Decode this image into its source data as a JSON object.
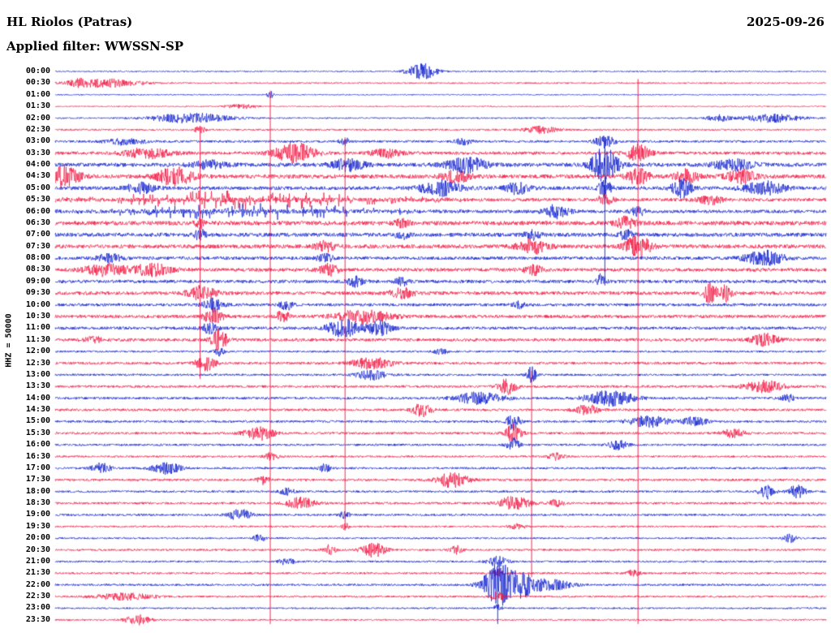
{
  "header": {
    "station": "HL Riolos (Patras)",
    "date": "2025-09-26",
    "filter": "Applied filter: WWSSN-SP"
  },
  "axis": {
    "left_label": "HHZ = 50000"
  },
  "chart_data": {
    "type": "line",
    "subtype": "helicorder-seismogram",
    "title": "HL Riolos (Patras)",
    "date": "2025-09-26",
    "filter": "WWSSN-SP",
    "xlabel": "",
    "ylabel": "HHZ = 50000",
    "grid": false,
    "legend": "none",
    "x_range_minutes_per_row": 30,
    "colors": {
      "blue": "#0d1ccd",
      "red": "#f2113e"
    },
    "rows": [
      {
        "time": "00:00",
        "color": "blue",
        "noise": 0.8,
        "events": [
          {
            "t": 0.476,
            "w": 0.018,
            "a": 10
          }
        ]
      },
      {
        "time": "00:30",
        "color": "red",
        "noise": 0.9,
        "events": [
          {
            "t": 0.065,
            "w": 0.045,
            "a": 5
          },
          {
            "t": 0.03,
            "w": 0.01,
            "a": 3
          }
        ]
      },
      {
        "time": "01:00",
        "color": "blue",
        "noise": 0.7,
        "events": [
          {
            "t": 0.279,
            "w": 0.004,
            "a": 5
          }
        ]
      },
      {
        "time": "01:30",
        "color": "red",
        "noise": 0.7,
        "events": [
          {
            "t": 0.24,
            "w": 0.02,
            "a": 2.5
          }
        ]
      },
      {
        "time": "02:00",
        "color": "blue",
        "noise": 0.9,
        "events": [
          {
            "t": 0.175,
            "w": 0.05,
            "a": 6
          },
          {
            "t": 0.86,
            "w": 0.015,
            "a": 4
          },
          {
            "t": 0.93,
            "w": 0.035,
            "a": 5
          }
        ]
      },
      {
        "time": "02:30",
        "color": "red",
        "noise": 1.1,
        "events": [
          {
            "t": 0.188,
            "w": 0.006,
            "a": 5
          },
          {
            "t": 0.63,
            "w": 0.02,
            "a": 4
          }
        ]
      },
      {
        "time": "03:00",
        "color": "blue",
        "noise": 1.4,
        "events": [
          {
            "t": 0.09,
            "w": 0.025,
            "a": 4
          },
          {
            "t": 0.713,
            "w": 0.012,
            "a": 8
          },
          {
            "t": 0.376,
            "w": 0.008,
            "a": 4
          },
          {
            "t": 0.53,
            "w": 0.01,
            "a": 4
          }
        ]
      },
      {
        "time": "03:30",
        "color": "red",
        "noise": 1.9,
        "events": [
          {
            "t": 0.311,
            "w": 0.025,
            "a": 12
          },
          {
            "t": 0.756,
            "w": 0.015,
            "a": 10
          },
          {
            "t": 0.12,
            "w": 0.03,
            "a": 6
          },
          {
            "t": 0.43,
            "w": 0.02,
            "a": 5
          }
        ]
      },
      {
        "time": "04:00",
        "color": "blue",
        "noise": 2.4,
        "events": [
          {
            "t": 0.713,
            "w": 0.016,
            "a": 22
          },
          {
            "t": 0.534,
            "w": 0.025,
            "a": 9
          },
          {
            "t": 0.38,
            "w": 0.02,
            "a": 7
          },
          {
            "t": 0.88,
            "w": 0.025,
            "a": 6
          },
          {
            "t": 0.2,
            "w": 0.02,
            "a": 5
          }
        ]
      },
      {
        "time": "04:30",
        "color": "red",
        "noise": 2.4,
        "events": [
          {
            "t": 0.012,
            "w": 0.02,
            "a": 12
          },
          {
            "t": 0.155,
            "w": 0.022,
            "a": 11
          },
          {
            "t": 0.52,
            "w": 0.018,
            "a": 7
          },
          {
            "t": 0.756,
            "w": 0.015,
            "a": 9
          },
          {
            "t": 0.82,
            "w": 0.015,
            "a": 8
          },
          {
            "t": 0.89,
            "w": 0.018,
            "a": 8
          }
        ]
      },
      {
        "time": "05:00",
        "color": "blue",
        "noise": 2.2,
        "events": [
          {
            "t": 0.5,
            "w": 0.025,
            "a": 9
          },
          {
            "t": 0.6,
            "w": 0.015,
            "a": 7
          },
          {
            "t": 0.713,
            "w": 0.008,
            "a": 10
          },
          {
            "t": 0.813,
            "w": 0.012,
            "a": 12
          },
          {
            "t": 0.92,
            "w": 0.025,
            "a": 8
          },
          {
            "t": 0.11,
            "w": 0.018,
            "a": 6
          }
        ]
      },
      {
        "time": "05:30",
        "color": "red",
        "noise": 2.0,
        "events": [
          {
            "t": 0.25,
            "w": 0.17,
            "a": 11,
            "spiky": true
          },
          {
            "t": 0.713,
            "w": 0.01,
            "a": 6
          },
          {
            "t": 0.85,
            "w": 0.015,
            "a": 5
          }
        ]
      },
      {
        "time": "06:00",
        "color": "blue",
        "noise": 2.0,
        "events": [
          {
            "t": 0.25,
            "w": 0.17,
            "a": 9,
            "spiky": true
          },
          {
            "t": 0.65,
            "w": 0.015,
            "a": 8
          },
          {
            "t": 0.756,
            "w": 0.008,
            "a": 6
          }
        ]
      },
      {
        "time": "06:30",
        "color": "red",
        "noise": 2.6,
        "events": [
          {
            "t": 0.188,
            "w": 0.006,
            "a": 6
          },
          {
            "t": 0.74,
            "w": 0.012,
            "a": 7
          },
          {
            "t": 0.45,
            "w": 0.01,
            "a": 4
          }
        ]
      },
      {
        "time": "07:00",
        "color": "blue",
        "noise": 2.4,
        "events": [
          {
            "t": 0.188,
            "w": 0.006,
            "a": 8
          },
          {
            "t": 0.45,
            "w": 0.008,
            "a": 5
          },
          {
            "t": 0.74,
            "w": 0.008,
            "a": 6
          },
          {
            "t": 0.62,
            "w": 0.01,
            "a": 5
          }
        ]
      },
      {
        "time": "07:30",
        "color": "red",
        "noise": 2.4,
        "events": [
          {
            "t": 0.62,
            "w": 0.018,
            "a": 9
          },
          {
            "t": 0.756,
            "w": 0.015,
            "a": 14
          },
          {
            "t": 0.35,
            "w": 0.012,
            "a": 6
          }
        ]
      },
      {
        "time": "08:00",
        "color": "blue",
        "noise": 2.0,
        "events": [
          {
            "t": 0.92,
            "w": 0.025,
            "a": 9
          },
          {
            "t": 0.07,
            "w": 0.015,
            "a": 5
          },
          {
            "t": 0.35,
            "w": 0.01,
            "a": 5
          }
        ]
      },
      {
        "time": "08:30",
        "color": "red",
        "noise": 2.1,
        "events": [
          {
            "t": 0.065,
            "w": 0.025,
            "a": 7
          },
          {
            "t": 0.125,
            "w": 0.025,
            "a": 7
          },
          {
            "t": 0.355,
            "w": 0.012,
            "a": 7
          },
          {
            "t": 0.62,
            "w": 0.012,
            "a": 6
          }
        ]
      },
      {
        "time": "09:00",
        "color": "blue",
        "noise": 2.0,
        "events": [
          {
            "t": 0.708,
            "w": 0.006,
            "a": 9
          },
          {
            "t": 0.39,
            "w": 0.01,
            "a": 6
          },
          {
            "t": 0.45,
            "w": 0.008,
            "a": 5
          }
        ]
      },
      {
        "time": "09:30",
        "color": "red",
        "noise": 2.1,
        "events": [
          {
            "t": 0.849,
            "w": 0.008,
            "a": 12
          },
          {
            "t": 0.868,
            "w": 0.008,
            "a": 12
          },
          {
            "t": 0.19,
            "w": 0.018,
            "a": 8
          },
          {
            "t": 0.45,
            "w": 0.015,
            "a": 6
          }
        ]
      },
      {
        "time": "10:00",
        "color": "blue",
        "noise": 1.8,
        "events": [
          {
            "t": 0.205,
            "w": 0.012,
            "a": 8
          },
          {
            "t": 0.3,
            "w": 0.008,
            "a": 6
          },
          {
            "t": 0.6,
            "w": 0.01,
            "a": 4
          }
        ]
      },
      {
        "time": "10:30",
        "color": "red",
        "noise": 1.9,
        "events": [
          {
            "t": 0.205,
            "w": 0.012,
            "a": 9
          },
          {
            "t": 0.295,
            "w": 0.008,
            "a": 7
          },
          {
            "t": 0.4,
            "w": 0.035,
            "a": 8
          }
        ]
      },
      {
        "time": "11:00",
        "color": "blue",
        "noise": 1.8,
        "events": [
          {
            "t": 0.374,
            "w": 0.02,
            "a": 11
          },
          {
            "t": 0.42,
            "w": 0.015,
            "a": 9
          },
          {
            "t": 0.2,
            "w": 0.01,
            "a": 6
          }
        ]
      },
      {
        "time": "11:30",
        "color": "red",
        "noise": 1.9,
        "events": [
          {
            "t": 0.213,
            "w": 0.01,
            "a": 13
          },
          {
            "t": 0.92,
            "w": 0.018,
            "a": 7
          },
          {
            "t": 0.05,
            "w": 0.01,
            "a": 4
          }
        ]
      },
      {
        "time": "12:00",
        "color": "blue",
        "noise": 1.2,
        "events": [
          {
            "t": 0.213,
            "w": 0.006,
            "a": 5
          },
          {
            "t": 0.5,
            "w": 0.01,
            "a": 3
          }
        ]
      },
      {
        "time": "12:30",
        "color": "red",
        "noise": 1.5,
        "events": [
          {
            "t": 0.195,
            "w": 0.012,
            "a": 9
          },
          {
            "t": 0.41,
            "w": 0.025,
            "a": 7
          }
        ]
      },
      {
        "time": "13:00",
        "color": "blue",
        "noise": 1.3,
        "events": [
          {
            "t": 0.41,
            "w": 0.018,
            "a": 6
          },
          {
            "t": 0.618,
            "w": 0.006,
            "a": 10
          }
        ]
      },
      {
        "time": "13:30",
        "color": "red",
        "noise": 1.5,
        "events": [
          {
            "t": 0.586,
            "w": 0.012,
            "a": 9
          },
          {
            "t": 0.92,
            "w": 0.025,
            "a": 7
          }
        ]
      },
      {
        "time": "14:00",
        "color": "blue",
        "noise": 1.5,
        "events": [
          {
            "t": 0.55,
            "w": 0.03,
            "a": 7
          },
          {
            "t": 0.72,
            "w": 0.03,
            "a": 9
          },
          {
            "t": 0.95,
            "w": 0.008,
            "a": 5
          }
        ]
      },
      {
        "time": "14:30",
        "color": "red",
        "noise": 1.5,
        "events": [
          {
            "t": 0.476,
            "w": 0.012,
            "a": 8
          },
          {
            "t": 0.69,
            "w": 0.015,
            "a": 6
          }
        ]
      },
      {
        "time": "15:00",
        "color": "blue",
        "noise": 1.4,
        "events": [
          {
            "t": 0.594,
            "w": 0.008,
            "a": 10
          },
          {
            "t": 0.77,
            "w": 0.025,
            "a": 7
          },
          {
            "t": 0.83,
            "w": 0.015,
            "a": 6
          }
        ]
      },
      {
        "time": "15:30",
        "color": "red",
        "noise": 1.4,
        "events": [
          {
            "t": 0.265,
            "w": 0.018,
            "a": 9
          },
          {
            "t": 0.594,
            "w": 0.01,
            "a": 11
          },
          {
            "t": 0.88,
            "w": 0.015,
            "a": 5
          }
        ]
      },
      {
        "time": "16:00",
        "color": "blue",
        "noise": 1.3,
        "events": [
          {
            "t": 0.594,
            "w": 0.008,
            "a": 8
          },
          {
            "t": 0.73,
            "w": 0.012,
            "a": 6
          }
        ]
      },
      {
        "time": "16:30",
        "color": "red",
        "noise": 1.2,
        "events": [
          {
            "t": 0.28,
            "w": 0.008,
            "a": 5
          },
          {
            "t": 0.65,
            "w": 0.01,
            "a": 4
          }
        ]
      },
      {
        "time": "17:00",
        "color": "blue",
        "noise": 1.3,
        "events": [
          {
            "t": 0.06,
            "w": 0.012,
            "a": 6
          },
          {
            "t": 0.144,
            "w": 0.018,
            "a": 7
          },
          {
            "t": 0.35,
            "w": 0.008,
            "a": 5
          }
        ]
      },
      {
        "time": "17:30",
        "color": "red",
        "noise": 1.4,
        "events": [
          {
            "t": 0.515,
            "w": 0.02,
            "a": 9
          },
          {
            "t": 0.27,
            "w": 0.008,
            "a": 5
          }
        ]
      },
      {
        "time": "18:00",
        "color": "blue",
        "noise": 1.3,
        "events": [
          {
            "t": 0.923,
            "w": 0.01,
            "a": 9
          },
          {
            "t": 0.962,
            "w": 0.01,
            "a": 9
          },
          {
            "t": 0.3,
            "w": 0.01,
            "a": 4
          }
        ]
      },
      {
        "time": "18:30",
        "color": "red",
        "noise": 1.4,
        "events": [
          {
            "t": 0.318,
            "w": 0.018,
            "a": 7
          },
          {
            "t": 0.595,
            "w": 0.02,
            "a": 8
          },
          {
            "t": 0.65,
            "w": 0.008,
            "a": 5
          }
        ]
      },
      {
        "time": "19:00",
        "color": "blue",
        "noise": 1.3,
        "events": [
          {
            "t": 0.24,
            "w": 0.015,
            "a": 7
          },
          {
            "t": 0.376,
            "w": 0.006,
            "a": 5
          }
        ]
      },
      {
        "time": "19:30",
        "color": "red",
        "noise": 1.1,
        "events": [
          {
            "t": 0.376,
            "w": 0.005,
            "a": 4
          },
          {
            "t": 0.6,
            "w": 0.01,
            "a": 3
          }
        ]
      },
      {
        "time": "20:00",
        "color": "blue",
        "noise": 1.1,
        "events": [
          {
            "t": 0.265,
            "w": 0.008,
            "a": 5
          },
          {
            "t": 0.953,
            "w": 0.008,
            "a": 5
          }
        ]
      },
      {
        "time": "20:30",
        "color": "red",
        "noise": 1.2,
        "events": [
          {
            "t": 0.355,
            "w": 0.008,
            "a": 6
          },
          {
            "t": 0.413,
            "w": 0.015,
            "a": 9
          },
          {
            "t": 0.52,
            "w": 0.008,
            "a": 5
          }
        ]
      },
      {
        "time": "21:00",
        "color": "blue",
        "noise": 1.2,
        "events": [
          {
            "t": 0.574,
            "w": 0.012,
            "a": 6
          },
          {
            "t": 0.3,
            "w": 0.01,
            "a": 4
          }
        ]
      },
      {
        "time": "21:30",
        "color": "red",
        "noise": 1.2,
        "events": [
          {
            "t": 0.574,
            "w": 0.006,
            "a": 6
          },
          {
            "t": 0.75,
            "w": 0.008,
            "a": 4
          }
        ]
      },
      {
        "time": "22:00",
        "color": "blue",
        "noise": 1.3,
        "events": [
          {
            "t": 0.574,
            "w": 0.018,
            "a": 26
          },
          {
            "t": 0.605,
            "w": 0.02,
            "a": 14
          },
          {
            "t": 0.645,
            "w": 0.025,
            "a": 6
          }
        ]
      },
      {
        "time": "22:30",
        "color": "red",
        "noise": 1.2,
        "events": [
          {
            "t": 0.09,
            "w": 0.035,
            "a": 4
          },
          {
            "t": 0.574,
            "w": 0.008,
            "a": 6
          }
        ]
      },
      {
        "time": "23:00",
        "color": "blue",
        "noise": 1.0,
        "events": [
          {
            "t": 0.574,
            "w": 0.005,
            "a": 5
          }
        ]
      },
      {
        "time": "23:30",
        "color": "red",
        "noise": 1.0,
        "events": [
          {
            "t": 0.107,
            "w": 0.015,
            "a": 6
          }
        ]
      }
    ],
    "vertical_spikes": [
      {
        "t": 0.279,
        "from": 2,
        "to": 47,
        "color": "red"
      },
      {
        "t": 0.756,
        "from": 1,
        "to": 47,
        "color": "red"
      },
      {
        "t": 0.188,
        "from": 5,
        "to": 26,
        "color": "red"
      },
      {
        "t": 0.376,
        "from": 6,
        "to": 39,
        "color": "red"
      },
      {
        "t": 0.618,
        "from": 26,
        "to": 43,
        "color": "red"
      },
      {
        "t": 0.574,
        "from": 43,
        "to": 47,
        "color": "blue"
      },
      {
        "t": 0.713,
        "from": 6,
        "to": 18,
        "color": "blue"
      }
    ]
  }
}
